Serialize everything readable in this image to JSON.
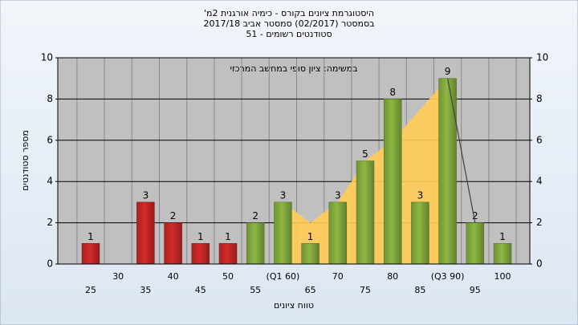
{
  "chart_data": {
    "type": "bar",
    "title": "היסטוגרמת ציונים בקורס - כימיה אורגנית 2מ'",
    "subtitle": [
      "בסמסטר (02/2017) סמסטר אביב 2017/18",
      "סטודנטים רשומים - 51"
    ],
    "annotation": "במשימה: ציון סופי במחשב המרכזי",
    "x_label": "טווח ציונים",
    "y_label": "מספר סטודנטים",
    "categories": [
      "25",
      "30",
      "35",
      "40",
      "45",
      "50",
      "55",
      "(Q1 60)",
      "65",
      "70",
      "75",
      "80",
      "85",
      "(Q3 90)",
      "95",
      "100"
    ],
    "values": [
      1,
      null,
      3,
      2,
      1,
      1,
      2,
      3,
      1,
      3,
      5,
      8,
      3,
      9,
      2,
      1
    ],
    "colors": [
      "#d42a2a",
      "#d42a2a",
      "#d42a2a",
      "#d42a2a",
      "#d42a2a",
      "#d42a2a",
      "#8db843",
      "#8db843",
      "#8db843",
      "#8db843",
      "#8db843",
      "#8db843",
      "#8db843",
      "#8db843",
      "#8db843",
      "#8db843"
    ],
    "area": {
      "color": "#ffcc55",
      "values": [
        null,
        null,
        null,
        null,
        null,
        null,
        null,
        3,
        2,
        3,
        5,
        6,
        7.5,
        9,
        null,
        null
      ]
    },
    "line": {
      "color": "#404040",
      "values": [
        null,
        null,
        null,
        null,
        null,
        null,
        null,
        null,
        null,
        null,
        null,
        null,
        null,
        9,
        2,
        null
      ]
    },
    "ylim": [
      0,
      10
    ],
    "yticks": [
      0,
      2,
      4,
      6,
      8,
      10
    ],
    "y2lim": [
      0,
      10
    ],
    "y2ticks": [
      0,
      2,
      4,
      6,
      8,
      10
    ],
    "grid": true
  }
}
